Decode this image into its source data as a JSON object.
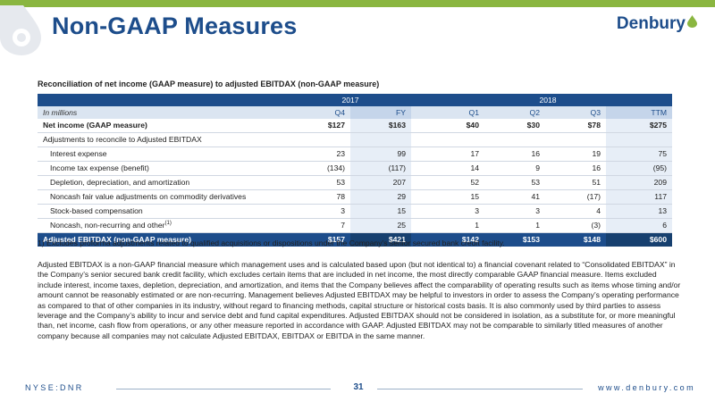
{
  "slide": {
    "title": "Non-GAAP Measures",
    "brand": "Denbury",
    "table_caption": "Reconciliation of net income (GAAP measure) to adjusted EBITDAX (non-GAAP measure)",
    "footnote": "1) Excludes proforma adjustments related to qualified acquisitions or dispositions under the Company’s senior secured bank credit facility.",
    "description": "Adjusted EBITDAX is a non-GAAP financial measure which management uses and is calculated based upon (but not identical to) a financial covenant related to “Consolidated EBITDAX” in the Company’s senior secured bank credit facility, which excludes certain items that are included in net income, the most directly comparable GAAP financial measure. Items excluded include interest, income taxes, depletion, depreciation, and amortization, and items that the Company believes affect the comparability of operating results such as items whose timing and/or amount cannot be reasonably estimated or are non-recurring. Management believes Adjusted EBITDAX may be helpful to investors in order to assess the Company’s operating performance as compared to that of other companies in its industry, without regard to financing methods, capital structure or historical costs basis. It is also commonly used by third parties to assess leverage and the Company’s ability to incur and service debt and fund capital expenditures. Adjusted EBITDAX should not be considered in isolation, as a substitute for, or more meaningful than, net income, cash flow from operations, or any other measure reported in accordance with GAAP. Adjusted EBITDAX may not be comparable to similarly titled measures of another company because all companies may not calculate Adjusted EBITDAX, EBITDAX or EBITDA in the same manner."
  },
  "footer": {
    "ticker": "NYSE:DNR",
    "page": "31",
    "website": "www.denbury.com"
  },
  "table": {
    "years": [
      "2017",
      "2018"
    ],
    "units": "In millions",
    "periods": [
      "Q4",
      "FY",
      "Q1",
      "Q2",
      "Q3",
      "TTM"
    ],
    "rows": [
      {
        "label": "Net income (GAAP measure)",
        "values": [
          "$127",
          "$163",
          "$40",
          "$30",
          "$78",
          "$275"
        ]
      },
      {
        "label": "Adjustments to reconcile to Adjusted EBITDAX",
        "values": [
          "",
          "",
          "",
          "",
          "",
          ""
        ]
      },
      {
        "label": "Interest expense",
        "values": [
          "23",
          "99",
          "17",
          "16",
          "19",
          "75"
        ]
      },
      {
        "label": "Income tax expense (benefit)",
        "values": [
          "(134)",
          "(117)",
          "14",
          "9",
          "16",
          "(95)"
        ]
      },
      {
        "label": "Depletion, depreciation, and amortization",
        "values": [
          "53",
          "207",
          "52",
          "53",
          "51",
          "209"
        ]
      },
      {
        "label": "Noncash fair value adjustments on commodity derivatives",
        "values": [
          "78",
          "29",
          "15",
          "41",
          "(17)",
          "117"
        ]
      },
      {
        "label": "Stock-based compensation",
        "values": [
          "3",
          "15",
          "3",
          "3",
          "4",
          "13"
        ]
      },
      {
        "label": "Noncash, non-recurring and other",
        "footnote_mark": "(1)",
        "values": [
          "7",
          "25",
          "1",
          "1",
          "(3)",
          "6"
        ]
      },
      {
        "label": "Adjusted EBITDAX (non-GAAP measure)",
        "values": [
          "$157",
          "$421",
          "$142",
          "$153",
          "$148",
          "$600"
        ]
      }
    ]
  },
  "colors": {
    "brand_blue": "#1d4d8b",
    "brand_green": "#8ab640",
    "header_light": "#dbe5f1"
  }
}
